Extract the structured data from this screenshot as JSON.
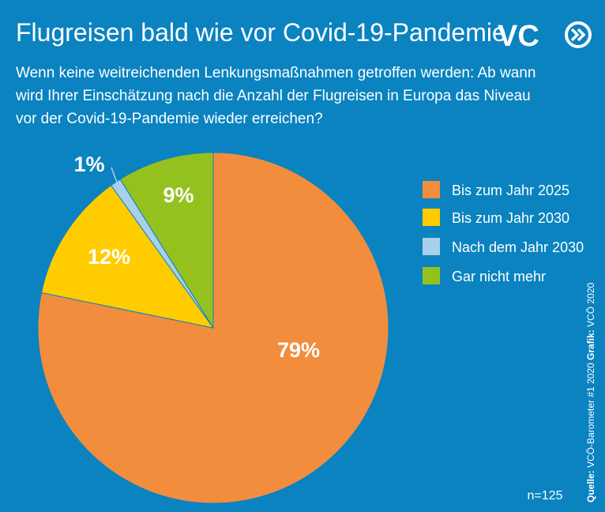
{
  "chart_data": {
    "type": "pie",
    "title": "Flugreisen bald wie vor Covid-19-Pandemie",
    "subtitle": [
      "Wenn keine weitreichenden Lenkungsmaßnahmen getroffen werden: Ab wann",
      "wird Ihrer Einschätzung nach die Anzahl der Flugreisen in Europa das Niveau",
      "vor der Covid-19-Pandemie wieder erreichen?"
    ],
    "logo": "VC",
    "categories": [
      "Bis zum Jahr 2025",
      "Bis zum Jahr 2030",
      "Nach dem Jahr 2030",
      "Gar nicht mehr"
    ],
    "values": [
      79,
      12,
      1,
      9
    ],
    "value_labels": [
      "79%",
      "12%",
      "1%",
      "9%"
    ],
    "colors": [
      "#f28d3d",
      "#ffcc00",
      "#a9d0ea",
      "#95c11f"
    ],
    "legend": "right",
    "note": "n=125",
    "source_label": "Quelle:",
    "source": "VCÖ-Barometer #1 2020",
    "credit_label": "Grafik:",
    "credit": "VCÖ 2020"
  }
}
